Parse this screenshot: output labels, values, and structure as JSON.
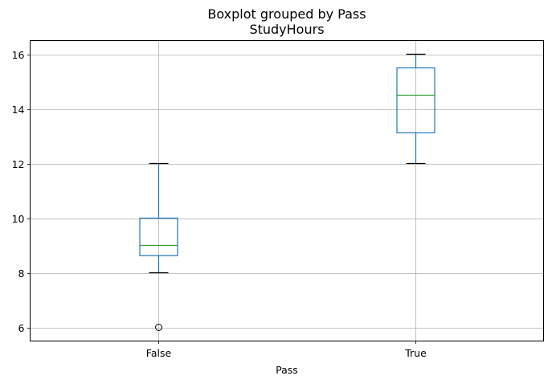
{
  "chart_data": {
    "type": "boxplot",
    "suptitle": "Boxplot grouped by Pass",
    "title": "StudyHours",
    "xlabel": "Pass",
    "ylabel": "",
    "categories": [
      "False",
      "True"
    ],
    "ylim": [
      5.5,
      16.5
    ],
    "yticks": [
      6,
      8,
      10,
      12,
      14,
      16
    ],
    "grid": true,
    "boxes": [
      {
        "category": "False",
        "whisker_low": 8,
        "q1": 8.625,
        "median": 9,
        "q3": 10,
        "whisker_high": 12,
        "outliers": [
          6
        ]
      },
      {
        "category": "True",
        "whisker_low": 12,
        "q1": 13.125,
        "median": 14.5,
        "q3": 15.5,
        "whisker_high": 16,
        "outliers": []
      }
    ],
    "colors": {
      "box": "#1f77b4",
      "median": "#2ca02c",
      "whisker_cap": "#000000",
      "grid": "#b0b0b0",
      "flier": "#000000"
    }
  }
}
